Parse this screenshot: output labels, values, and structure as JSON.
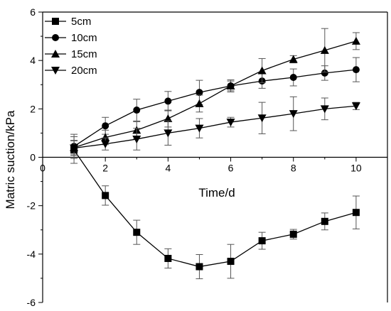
{
  "chart_data": {
    "type": "line",
    "xlabel": "Time/d",
    "ylabel": "Matric suction/kPa",
    "xlim": [
      0,
      11
    ],
    "ylim": [
      -6,
      6
    ],
    "xticks": [
      0,
      2,
      4,
      6,
      8,
      10
    ],
    "yticks": [
      -6,
      -4,
      -2,
      0,
      2,
      4,
      6
    ],
    "x": [
      1,
      2,
      3,
      4,
      5,
      6,
      7,
      8,
      9,
      10
    ],
    "legend_position": "top-left",
    "grid": false,
    "series": [
      {
        "name": "5cm",
        "marker": "square",
        "values": [
          0.3,
          -1.58,
          -3.1,
          -4.18,
          -4.52,
          -4.3,
          -3.45,
          -3.18,
          -2.65,
          -2.28
        ],
        "errors": [
          0.55,
          0.4,
          0.5,
          0.4,
          0.5,
          0.7,
          0.35,
          0.2,
          0.35,
          0.68
        ]
      },
      {
        "name": "10cm",
        "marker": "circle",
        "values": [
          0.45,
          1.3,
          1.95,
          2.32,
          2.68,
          2.95,
          3.15,
          3.3,
          3.48,
          3.62
        ],
        "errors": [
          0.5,
          0.35,
          0.45,
          0.4,
          0.5,
          0.25,
          0.3,
          0.35,
          0.3,
          0.5
        ]
      },
      {
        "name": "15cm",
        "marker": "triangle-up",
        "values": [
          0.4,
          0.82,
          1.12,
          1.6,
          2.22,
          2.95,
          3.58,
          4.05,
          4.42,
          4.8
        ],
        "errors": [
          0.3,
          0.3,
          0.35,
          0.35,
          0.35,
          0.2,
          0.5,
          0.15,
          0.9,
          0.35
        ]
      },
      {
        "name": "20cm",
        "marker": "triangle-down",
        "values": [
          0.38,
          0.55,
          0.75,
          1.0,
          1.2,
          1.45,
          1.62,
          1.8,
          2.0,
          2.12
        ],
        "errors": [
          0.3,
          0.25,
          0.45,
          0.5,
          0.4,
          0.2,
          0.65,
          0.7,
          0.45,
          0.15
        ]
      }
    ]
  }
}
